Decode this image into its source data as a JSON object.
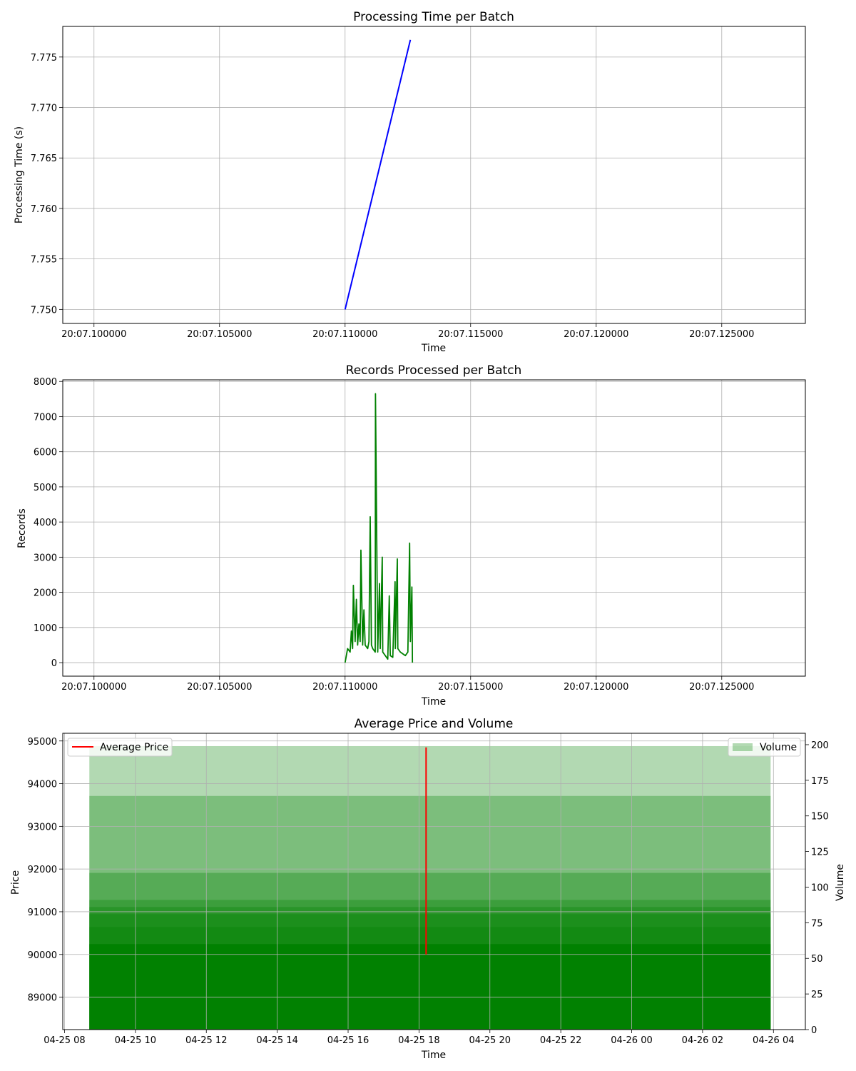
{
  "chart_data": [
    {
      "type": "line",
      "title": "Processing Time per Batch",
      "xlabel": "Time",
      "ylabel": "Processing Time (s)",
      "x_tick_labels": [
        "20:07.100000",
        "20:07.105000",
        "20:07.110000",
        "20:07.115000",
        "20:07.120000",
        "20:07.125000"
      ],
      "y_tick_labels": [
        "7.750",
        "7.755",
        "7.760",
        "7.765",
        "7.770",
        "7.775"
      ],
      "xlim": [
        20.07098757,
        20.0712833
      ],
      "ylim": [
        7.74861,
        7.77803
      ],
      "grid": true,
      "series": [
        {
          "color": "#0000ff",
          "x": [
            20.0711,
            20.071126
          ],
          "y": [
            7.75,
            7.7767
          ]
        }
      ]
    },
    {
      "type": "line",
      "title": "Records Processed per Batch",
      "xlabel": "Time",
      "ylabel": "Records",
      "x_tick_labels": [
        "20:07.100000",
        "20:07.105000",
        "20:07.110000",
        "20:07.115000",
        "20:07.120000",
        "20:07.125000"
      ],
      "y_tick_labels": [
        "0",
        "1000",
        "2000",
        "3000",
        "4000",
        "5000",
        "6000",
        "7000",
        "8000"
      ],
      "xlim": [
        20.07098757,
        20.0712833
      ],
      "ylim": [
        -385,
        8045
      ],
      "grid": true,
      "series": [
        {
          "color": "#008000",
          "x": [
            20.0711,
            20.071101,
            20.071102,
            20.0711025,
            20.071103,
            20.0711033,
            20.071104,
            20.0711045,
            20.071105,
            20.0711055,
            20.071106,
            20.0711063,
            20.071107,
            20.0711075,
            20.071108,
            20.071109,
            20.0711095,
            20.07111,
            20.0711105,
            20.071111,
            20.071112,
            20.0711121,
            20.071113,
            20.0711137,
            20.071114,
            20.0711148,
            20.071115,
            20.071116,
            20.071117,
            20.0711176,
            20.071118,
            20.071119,
            20.0711199,
            20.07112,
            20.0711208,
            20.071121,
            20.071122,
            20.071123,
            20.071124,
            20.071125,
            20.0711257,
            20.071126,
            20.0711266,
            20.071126822
          ],
          "y": [
            0,
            400,
            300,
            900,
            400,
            2200,
            600,
            1800,
            500,
            1100,
            600,
            3200,
            500,
            1500,
            500,
            400,
            600,
            4150,
            500,
            400,
            300,
            7650,
            300,
            2250,
            400,
            3000,
            300,
            200,
            100,
            1900,
            200,
            150,
            2300,
            400,
            2950,
            400,
            300,
            250,
            200,
            300,
            3400,
            600,
            2150,
            0
          ]
        }
      ]
    },
    {
      "type": "line",
      "title": "Average Price and Volume",
      "xlabel": "Time",
      "ylabel": "Price",
      "y2label": "Volume",
      "x_tick_labels": [
        "04-25 08",
        "04-25 10",
        "04-25 12",
        "04-25 14",
        "04-25 16",
        "04-25 18",
        "04-25 20",
        "04-25 22",
        "04-26 00",
        "04-26 02",
        "04-26 04"
      ],
      "y_tick_labels": [
        "89000",
        "90000",
        "91000",
        "92000",
        "93000",
        "94000",
        "95000"
      ],
      "y2_tick_labels": [
        "0",
        "25",
        "50",
        "75",
        "100",
        "125",
        "150",
        "175",
        "200"
      ],
      "xlim": [
        7.95,
        28.9
      ],
      "ylim": [
        88240,
        95180
      ],
      "y2lim": [
        0,
        208
      ],
      "grid": true,
      "legend_left": "top-left",
      "legend_right": "top-right",
      "series": [
        {
          "name": "Average Price",
          "color": "#ff0000",
          "x": [
            18.2,
            18.2
          ],
          "y": [
            90000,
            94850
          ]
        }
      ],
      "volume_bars": {
        "name": "Volume",
        "color": "#008000",
        "x_start": 8.7,
        "x_end": 27.92,
        "levels": [
          199,
          164,
          110,
          91,
          86,
          81,
          72
        ]
      }
    }
  ]
}
